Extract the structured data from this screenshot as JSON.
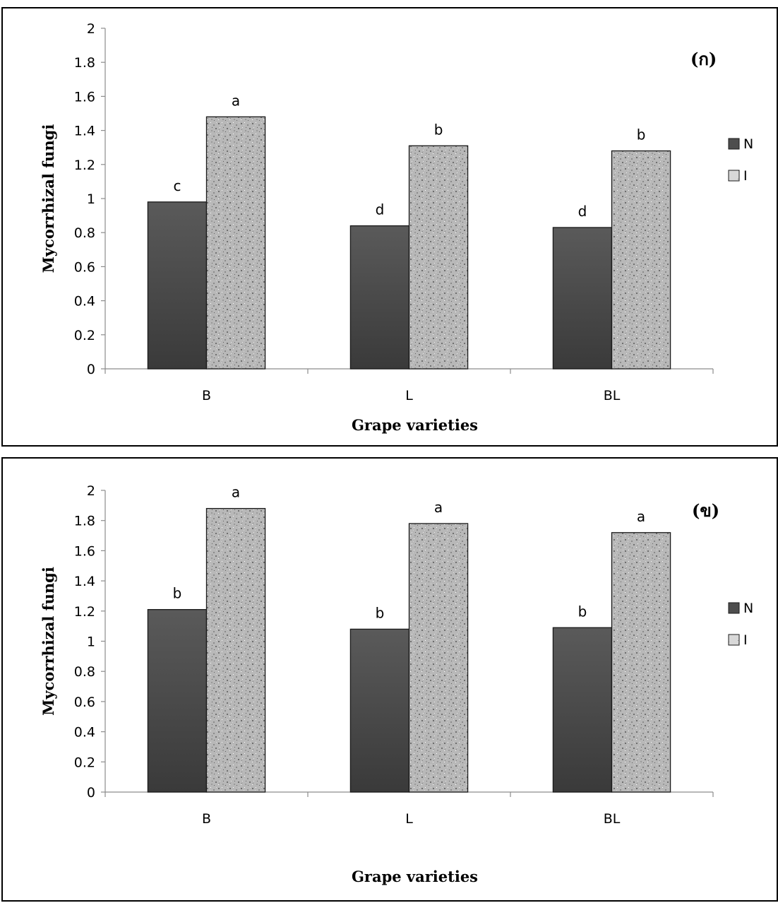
{
  "chart_data": [
    {
      "type": "bar",
      "panel_label": "(ก)",
      "categories": [
        "B",
        "L",
        "BL"
      ],
      "series": [
        {
          "name": "N",
          "values": [
            0.98,
            0.84,
            0.83
          ],
          "letters": [
            "c",
            "d",
            "d"
          ],
          "color": "#505050"
        },
        {
          "name": "I",
          "values": [
            1.48,
            1.31,
            1.28
          ],
          "letters": [
            "a",
            "b",
            "b"
          ],
          "color": "#b8b8b8"
        }
      ],
      "xlabel": "Grape varieties",
      "ylabel": "Mycorrhizal fungi",
      "ylim": [
        0,
        2
      ],
      "yticks": [
        "0",
        "0.2",
        "0.4",
        "0.6",
        "0.8",
        "1",
        "1.2",
        "1.4",
        "1.6",
        "1.8",
        "2"
      ],
      "grid": false,
      "legend": "right"
    },
    {
      "type": "bar",
      "panel_label": "(ข)",
      "categories": [
        "B",
        "L",
        "BL"
      ],
      "series": [
        {
          "name": "N",
          "values": [
            1.21,
            1.08,
            1.09
          ],
          "letters": [
            "b",
            "b",
            "b"
          ],
          "color": "#505050"
        },
        {
          "name": "I",
          "values": [
            1.88,
            1.78,
            1.72
          ],
          "letters": [
            "a",
            "a",
            "a"
          ],
          "color": "#b8b8b8"
        }
      ],
      "xlabel": "Grape varieties",
      "ylabel": "Mycorrhizal fungi",
      "ylim": [
        0,
        2
      ],
      "yticks": [
        "0",
        "0.2",
        "0.4",
        "0.6",
        "0.8",
        "1",
        "1.2",
        "1.4",
        "1.6",
        "1.8",
        "2"
      ],
      "grid": false,
      "legend": "right"
    }
  ]
}
